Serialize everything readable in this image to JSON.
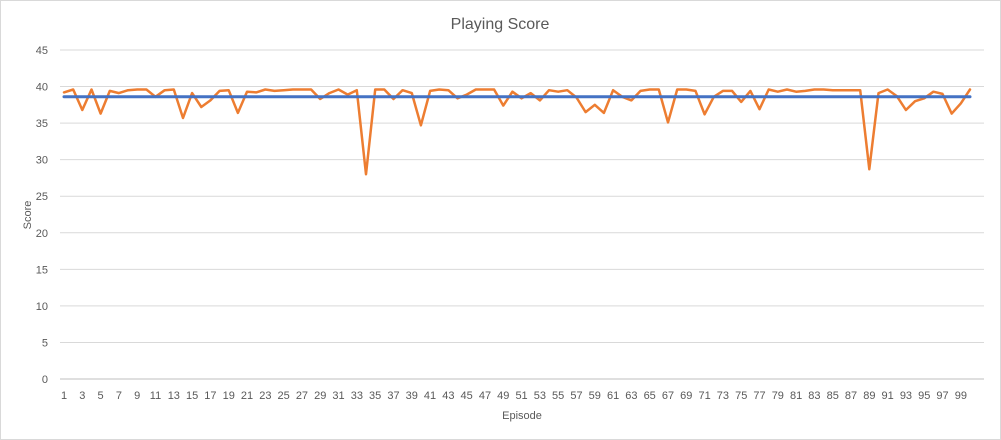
{
  "chart_data": {
    "type": "line",
    "title": "Playing Score",
    "xlabel": "Episode",
    "ylabel": "Score",
    "ylim": [
      0,
      45
    ],
    "yticks": [
      0,
      5,
      10,
      15,
      20,
      25,
      30,
      35,
      40,
      45
    ],
    "xlim": [
      1,
      100
    ],
    "xticks": [
      1,
      3,
      5,
      7,
      9,
      11,
      13,
      15,
      17,
      19,
      21,
      23,
      25,
      27,
      29,
      31,
      33,
      35,
      37,
      39,
      41,
      43,
      45,
      47,
      49,
      51,
      53,
      55,
      57,
      59,
      61,
      63,
      65,
      67,
      69,
      71,
      73,
      75,
      77,
      79,
      81,
      83,
      85,
      87,
      89,
      91,
      93,
      95,
      97,
      99
    ],
    "grid": true,
    "legend": "none",
    "series": [
      {
        "color": "#ed7d31",
        "x": [
          1,
          2,
          3,
          4,
          5,
          6,
          7,
          8,
          9,
          10,
          11,
          12,
          13,
          14,
          15,
          16,
          17,
          18,
          19,
          20,
          21,
          22,
          23,
          24,
          25,
          26,
          27,
          28,
          29,
          30,
          31,
          32,
          33,
          34,
          35,
          36,
          37,
          38,
          39,
          40,
          41,
          42,
          43,
          44,
          45,
          46,
          47,
          48,
          49,
          50,
          51,
          52,
          53,
          54,
          55,
          56,
          57,
          58,
          59,
          60,
          61,
          62,
          63,
          64,
          65,
          66,
          67,
          68,
          69,
          70,
          71,
          72,
          73,
          74,
          75,
          76,
          77,
          78,
          79,
          80,
          81,
          82,
          83,
          84,
          85,
          86,
          87,
          88,
          89,
          90,
          91,
          92,
          93,
          94,
          95,
          96,
          97,
          98,
          99,
          100
        ],
        "values": [
          39.2,
          39.6,
          36.8,
          39.6,
          36.3,
          39.4,
          39.1,
          39.5,
          39.6,
          39.6,
          38.6,
          39.5,
          39.6,
          35.7,
          39.1,
          37.2,
          38.1,
          39.4,
          39.5,
          36.4,
          39.3,
          39.2,
          39.6,
          39.4,
          39.5,
          39.6,
          39.6,
          39.6,
          38.3,
          39.1,
          39.6,
          38.9,
          39.5,
          28.0,
          39.6,
          39.6,
          38.3,
          39.5,
          39.1,
          34.7,
          39.4,
          39.6,
          39.5,
          38.4,
          38.9,
          39.6,
          39.6,
          39.6,
          37.4,
          39.3,
          38.4,
          39.1,
          38.1,
          39.5,
          39.3,
          39.5,
          38.5,
          36.5,
          37.5,
          36.4,
          39.5,
          38.6,
          38.1,
          39.4,
          39.6,
          39.6,
          35.1,
          39.6,
          39.6,
          39.4,
          36.2,
          38.6,
          39.4,
          39.4,
          37.9,
          39.4,
          36.9,
          39.6,
          39.3,
          39.6,
          39.3,
          39.4,
          39.6,
          39.6,
          39.5,
          39.5,
          39.5,
          39.5,
          28.7,
          39.1,
          39.6,
          38.7,
          36.8,
          38.0,
          38.4,
          39.3,
          39.0,
          36.3,
          37.7,
          39.6
        ]
      },
      {
        "color": "#4472c4",
        "x": [
          1,
          100
        ],
        "values": [
          38.6,
          38.6
        ]
      }
    ]
  }
}
